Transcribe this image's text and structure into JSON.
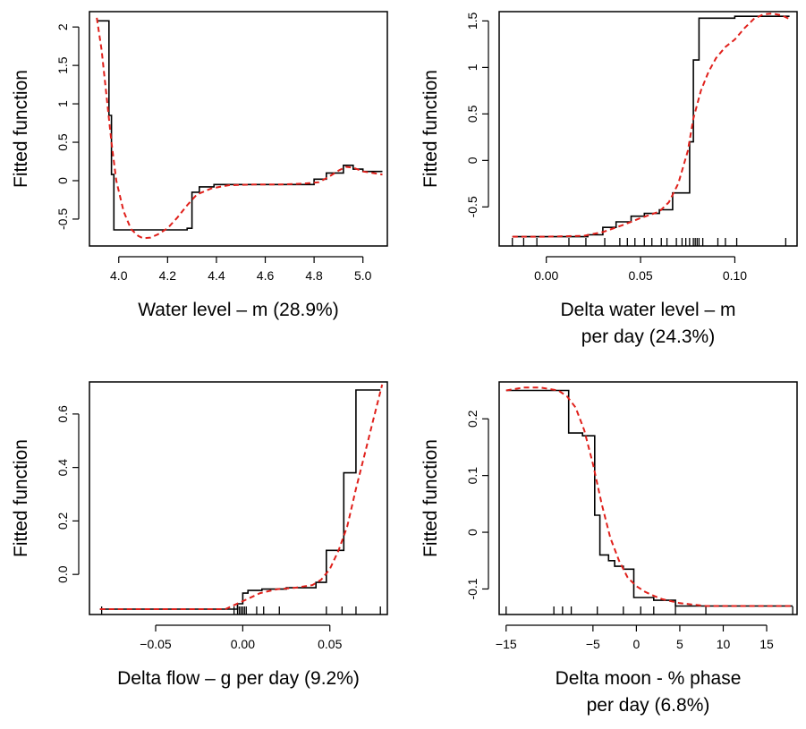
{
  "chart_data": [
    {
      "type": "line",
      "panel": "top-left",
      "ylabel": "Fitted function",
      "xlabel_lines": [
        "Water level – m (28.9%)"
      ],
      "xlim": [
        3.88,
        5.1
      ],
      "ylim": [
        -0.85,
        2.2
      ],
      "xticks": [
        4.0,
        4.2,
        4.4,
        4.6,
        4.8,
        5.0
      ],
      "xtick_labels": [
        "4.0",
        "4.2",
        "4.4",
        "4.6",
        "4.8",
        "5.0"
      ],
      "yticks": [
        -0.5,
        0,
        0.5,
        1,
        1.5,
        2
      ],
      "ytick_labels": [
        "-0.5",
        "0",
        "0.5",
        "1",
        "1.5",
        "2"
      ],
      "rug": [],
      "series": [
        {
          "style": "step",
          "color": "#000000",
          "x": [
            3.91,
            3.96,
            3.96,
            3.97,
            3.97,
            3.98,
            3.98,
            4.28,
            4.28,
            4.3,
            4.3,
            4.33,
            4.33,
            4.39,
            4.39,
            4.8,
            4.8,
            4.85,
            4.85,
            4.92,
            4.92,
            4.96,
            4.96,
            5.0,
            5.0,
            5.08
          ],
          "y": [
            2.08,
            2.08,
            0.85,
            0.85,
            0.08,
            0.08,
            -0.64,
            -0.64,
            -0.62,
            -0.62,
            -0.15,
            -0.15,
            -0.08,
            -0.08,
            -0.05,
            -0.05,
            0.02,
            0.02,
            0.1,
            0.1,
            0.2,
            0.2,
            0.15,
            0.15,
            0.12,
            0.12
          ]
        },
        {
          "style": "dashed",
          "color": "#e0201b",
          "x": [
            3.91,
            3.93,
            3.95,
            3.97,
            3.99,
            4.02,
            4.05,
            4.08,
            4.1,
            4.13,
            4.16,
            4.2,
            4.24,
            4.28,
            4.32,
            4.38,
            4.45,
            4.55,
            4.65,
            4.75,
            4.82,
            4.86,
            4.9,
            4.93,
            4.96,
            5.0,
            5.04,
            5.08
          ],
          "y": [
            2.12,
            1.7,
            1.1,
            0.5,
            0.0,
            -0.4,
            -0.63,
            -0.72,
            -0.75,
            -0.74,
            -0.7,
            -0.62,
            -0.48,
            -0.32,
            -0.18,
            -0.1,
            -0.06,
            -0.05,
            -0.05,
            -0.04,
            -0.02,
            0.05,
            0.13,
            0.18,
            0.17,
            0.12,
            0.1,
            0.08
          ]
        }
      ]
    },
    {
      "type": "line",
      "panel": "top-right",
      "ylabel": "Fitted function",
      "xlabel_lines": [
        "Delta water level – m",
        "per day (24.3%)"
      ],
      "xlim": [
        -0.025,
        0.133
      ],
      "ylim": [
        -0.92,
        1.6
      ],
      "xticks": [
        0.0,
        0.05,
        0.1
      ],
      "xtick_labels": [
        "0.00",
        "0.05",
        "0.10"
      ],
      "yticks": [
        -0.5,
        0,
        0.5,
        1,
        1.5
      ],
      "ytick_labels": [
        "-0.5",
        "0",
        "0.5",
        "1",
        "1.5"
      ],
      "rug": [
        -0.018,
        -0.012,
        -0.005,
        0.012,
        0.021,
        0.031,
        0.039,
        0.043,
        0.047,
        0.052,
        0.056,
        0.061,
        0.064,
        0.069,
        0.072,
        0.074,
        0.076,
        0.078,
        0.079,
        0.08,
        0.081,
        0.083,
        0.091,
        0.095,
        0.101,
        0.127
      ],
      "series": [
        {
          "style": "step",
          "color": "#000000",
          "x": [
            -0.018,
            0.022,
            0.022,
            0.03,
            0.03,
            0.037,
            0.037,
            0.045,
            0.045,
            0.052,
            0.052,
            0.06,
            0.06,
            0.067,
            0.067,
            0.076,
            0.076,
            0.078,
            0.078,
            0.081,
            0.081,
            0.1,
            0.1,
            0.129
          ],
          "y": [
            -0.82,
            -0.82,
            -0.8,
            -0.8,
            -0.72,
            -0.72,
            -0.66,
            -0.66,
            -0.6,
            -0.6,
            -0.57,
            -0.57,
            -0.53,
            -0.53,
            -0.35,
            -0.35,
            0.2,
            0.2,
            1.08,
            1.08,
            1.53,
            1.53,
            1.55,
            1.55
          ]
        },
        {
          "style": "dashed",
          "color": "#e0201b",
          "x": [
            -0.018,
            0.0,
            0.02,
            0.03,
            0.04,
            0.05,
            0.06,
            0.065,
            0.07,
            0.075,
            0.078,
            0.082,
            0.086,
            0.09,
            0.095,
            0.1,
            0.105,
            0.11,
            0.115,
            0.12,
            0.125,
            0.129
          ],
          "y": [
            -0.82,
            -0.82,
            -0.81,
            -0.77,
            -0.7,
            -0.62,
            -0.55,
            -0.45,
            -0.25,
            0.1,
            0.45,
            0.75,
            0.95,
            1.1,
            1.22,
            1.3,
            1.42,
            1.52,
            1.57,
            1.58,
            1.56,
            1.52
          ]
        }
      ]
    },
    {
      "type": "line",
      "panel": "bottom-left",
      "ylabel": "Fitted function",
      "xlabel_lines": [
        "Delta flow – g per day (9.2%)"
      ],
      "xlim": [
        -0.088,
        0.083
      ],
      "ylim": [
        -0.15,
        0.72
      ],
      "xticks": [
        -0.05,
        0.0,
        0.05
      ],
      "xtick_labels": [
        "−0.05",
        "0.00",
        "0.05"
      ],
      "yticks": [
        0.0,
        0.2,
        0.4,
        0.6
      ],
      "ytick_labels": [
        "0.0",
        "0.2",
        "0.4",
        "0.6"
      ],
      "rug": [
        -0.081,
        -0.005,
        -0.003,
        -0.002,
        -0.001,
        0.0,
        0.001,
        0.002,
        0.008,
        0.012,
        0.021,
        0.048,
        0.057,
        0.065,
        0.079
      ],
      "series": [
        {
          "style": "step",
          "color": "#000000",
          "x": [
            -0.082,
            -0.003,
            -0.003,
            0.0,
            0.0,
            0.003,
            0.003,
            0.011,
            0.011,
            0.025,
            0.025,
            0.042,
            0.042,
            0.048,
            0.048,
            0.058,
            0.058,
            0.065,
            0.065,
            0.079
          ],
          "y": [
            -0.13,
            -0.13,
            -0.11,
            -0.11,
            -0.07,
            -0.07,
            -0.06,
            -0.06,
            -0.055,
            -0.055,
            -0.05,
            -0.05,
            -0.03,
            -0.03,
            0.09,
            0.09,
            0.38,
            0.38,
            0.69,
            0.69
          ]
        },
        {
          "style": "dashed",
          "color": "#e0201b",
          "x": [
            -0.082,
            -0.04,
            -0.01,
            0.0,
            0.01,
            0.02,
            0.03,
            0.04,
            0.045,
            0.05,
            0.055,
            0.06,
            0.065,
            0.07,
            0.075,
            0.08
          ],
          "y": [
            -0.13,
            -0.13,
            -0.13,
            -0.1,
            -0.07,
            -0.055,
            -0.05,
            -0.04,
            -0.02,
            0.02,
            0.09,
            0.18,
            0.32,
            0.45,
            0.58,
            0.71
          ]
        }
      ]
    },
    {
      "type": "line",
      "panel": "bottom-right",
      "ylabel": "Fitted function",
      "xlabel_lines": [
        "Delta moon - % phase",
        "per day (6.8%)"
      ],
      "xlim": [
        -15.8,
        18.5
      ],
      "ylim": [
        -0.145,
        0.265
      ],
      "xticks": [
        -15,
        -5,
        0,
        5,
        10,
        15
      ],
      "xtick_labels": [
        "−15",
        "−5",
        "0",
        "5",
        "10",
        "15"
      ],
      "yticks": [
        -0.1,
        0.0,
        0.1,
        0.2
      ],
      "ytick_labels": [
        "-0.1",
        "0",
        "0.1",
        "0.2"
      ],
      "rug": [
        -15.0,
        -9.5,
        -8.5,
        -7.5,
        -4.5,
        -1.5,
        0.5,
        2.0,
        4.5,
        8.0,
        18.0
      ],
      "series": [
        {
          "style": "step",
          "color": "#000000",
          "x": [
            -15.0,
            -7.8,
            -7.8,
            -6.2,
            -6.2,
            -4.8,
            -4.8,
            -4.2,
            -4.2,
            -3.2,
            -3.2,
            -2.5,
            -2.5,
            -1.5,
            -1.5,
            -0.3,
            -0.3,
            2.0,
            2.0,
            4.5,
            4.5,
            18.0
          ],
          "y": [
            0.25,
            0.25,
            0.175,
            0.175,
            0.17,
            0.17,
            0.03,
            0.03,
            -0.04,
            -0.04,
            -0.05,
            -0.05,
            -0.06,
            -0.06,
            -0.065,
            -0.065,
            -0.115,
            -0.115,
            -0.12,
            -0.12,
            -0.13,
            -0.13
          ]
        },
        {
          "style": "dashed",
          "color": "#e0201b",
          "x": [
            -15.0,
            -13.0,
            -11.0,
            -9.0,
            -8.0,
            -7.0,
            -6.0,
            -5.0,
            -4.0,
            -3.0,
            -2.0,
            -1.0,
            0.0,
            1.0,
            2.0,
            3.0,
            5.0,
            8.0,
            18.0
          ],
          "y": [
            0.25,
            0.255,
            0.255,
            0.25,
            0.24,
            0.22,
            0.18,
            0.12,
            0.05,
            -0.01,
            -0.05,
            -0.08,
            -0.095,
            -0.105,
            -0.112,
            -0.118,
            -0.125,
            -0.13,
            -0.13
          ]
        }
      ]
    }
  ]
}
